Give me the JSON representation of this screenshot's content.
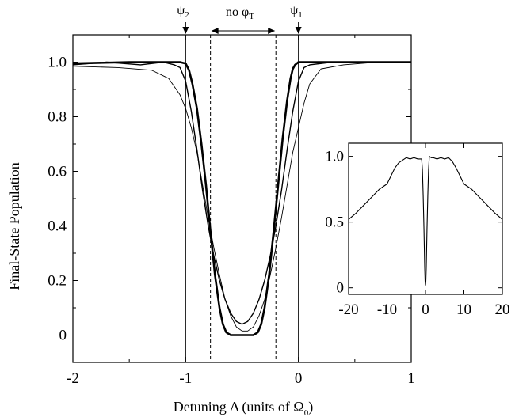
{
  "chart_data": [
    {
      "type": "line",
      "xlabel": "Detuning Δ (units of Ω",
      "xlabel_sub": "0",
      "xlabel_end": ")",
      "ylabel": "Final-State Population",
      "xlim": [
        -2,
        1
      ],
      "ylim": [
        -0.1,
        1.1
      ],
      "xticks": [
        -2,
        -1,
        0,
        1
      ],
      "xtick_labels": [
        "-2",
        "-1",
        "0",
        "1"
      ],
      "yticks": [
        0,
        0.2,
        0.4,
        0.6,
        0.8,
        1.0
      ],
      "ytick_labels": [
        "0",
        "0.2",
        "0.4",
        "0.6",
        "0.8",
        "1.0"
      ],
      "vlines_solid": [
        -1.0,
        0.0
      ],
      "vlines_dashed": [
        -0.78,
        -0.2
      ],
      "annotations": {
        "psi2": {
          "main": "ψ",
          "sub": "2",
          "x": -1.0
        },
        "psi1": {
          "main": "ψ",
          "sub": "1",
          "x": 0.0
        },
        "no_phi": {
          "main": "no φ",
          "sub": "T"
        }
      },
      "series": [
        {
          "style": "thick",
          "x": [
            -2,
            -1.5,
            -1.2,
            -1.05,
            -1.0,
            -0.97,
            -0.94,
            -0.9,
            -0.86,
            -0.82,
            -0.78,
            -0.74,
            -0.7,
            -0.67,
            -0.64,
            -0.6,
            -0.5,
            -0.4,
            -0.36,
            -0.33,
            -0.3,
            -0.26,
            -0.22,
            -0.18,
            -0.14,
            -0.1,
            -0.07,
            -0.05,
            -0.03,
            0.0,
            0.1,
            0.5,
            1.0
          ],
          "y": [
            0.995,
            1.0,
            1.0,
            1.0,
            0.995,
            0.97,
            0.92,
            0.83,
            0.7,
            0.55,
            0.38,
            0.22,
            0.1,
            0.04,
            0.01,
            0.0,
            0.0,
            0.0,
            0.01,
            0.04,
            0.1,
            0.22,
            0.38,
            0.55,
            0.72,
            0.86,
            0.94,
            0.975,
            0.99,
            1.0,
            1.0,
            1.0,
            1.0
          ]
        },
        {
          "style": "medium",
          "x": [
            -2,
            -1.7,
            -1.4,
            -1.2,
            -1.1,
            -1.05,
            -1.0,
            -0.95,
            -0.9,
            -0.85,
            -0.8,
            -0.75,
            -0.7,
            -0.65,
            -0.6,
            -0.55,
            -0.5,
            -0.45,
            -0.4,
            -0.35,
            -0.3,
            -0.25,
            -0.2,
            -0.15,
            -0.1,
            -0.05,
            0.0,
            0.05,
            0.1,
            0.3,
            0.6,
            1.0
          ],
          "y": [
            0.99,
            1.0,
            0.99,
            1.0,
            0.99,
            0.98,
            0.93,
            0.82,
            0.68,
            0.53,
            0.4,
            0.29,
            0.2,
            0.13,
            0.08,
            0.05,
            0.04,
            0.05,
            0.08,
            0.13,
            0.2,
            0.29,
            0.4,
            0.53,
            0.68,
            0.82,
            0.93,
            0.98,
            0.99,
            1.0,
            1.0,
            1.0
          ]
        },
        {
          "style": "thin",
          "x": [
            -2,
            -1.6,
            -1.3,
            -1.15,
            -1.05,
            -1.0,
            -0.95,
            -0.9,
            -0.85,
            -0.8,
            -0.75,
            -0.7,
            -0.65,
            -0.6,
            -0.55,
            -0.5,
            -0.45,
            -0.4,
            -0.35,
            -0.3,
            -0.25,
            -0.2,
            -0.15,
            -0.1,
            -0.05,
            0.0,
            0.05,
            0.1,
            0.2,
            0.4,
            0.7,
            1.0
          ],
          "y": [
            0.985,
            0.98,
            0.97,
            0.94,
            0.88,
            0.83,
            0.76,
            0.67,
            0.55,
            0.43,
            0.32,
            0.22,
            0.13,
            0.07,
            0.03,
            0.015,
            0.015,
            0.03,
            0.07,
            0.13,
            0.22,
            0.32,
            0.43,
            0.55,
            0.67,
            0.76,
            0.85,
            0.92,
            0.975,
            0.99,
            1.0,
            1.0
          ]
        }
      ]
    },
    {
      "type": "line",
      "title": "",
      "xlim": [
        -20,
        20
      ],
      "ylim": [
        -0.05,
        1.1
      ],
      "xticks": [
        -20,
        -10,
        0,
        10,
        20
      ],
      "xtick_labels": [
        "-20",
        "-10",
        "0",
        "10",
        "20"
      ],
      "yticks": [
        0,
        0.5,
        1.0
      ],
      "ytick_labels": [
        "0",
        "0.5",
        "1.0"
      ],
      "series": [
        {
          "style": "thin",
          "x": [
            -20,
            -18,
            -16,
            -14,
            -12,
            -10,
            -9,
            -8,
            -7,
            -6,
            -5,
            -4,
            -3,
            -2,
            -1.5,
            -1,
            -0.8,
            -0.6,
            -0.4,
            -0.3,
            -0.2,
            -0.1,
            0.0,
            0.1,
            0.2,
            0.3,
            0.4,
            0.6,
            0.8,
            1,
            1.5,
            2,
            3,
            4,
            5,
            6,
            7,
            8,
            9,
            10,
            12,
            14,
            16,
            18,
            20
          ],
          "y": [
            0.52,
            0.57,
            0.63,
            0.69,
            0.75,
            0.79,
            0.85,
            0.91,
            0.95,
            0.97,
            0.99,
            0.98,
            0.99,
            0.98,
            0.98,
            0.98,
            0.9,
            0.7,
            0.45,
            0.3,
            0.15,
            0.05,
            0.02,
            0.05,
            0.15,
            0.3,
            0.45,
            0.7,
            0.9,
            1.0,
            0.99,
            0.99,
            0.98,
            0.99,
            0.98,
            0.99,
            0.96,
            0.91,
            0.85,
            0.79,
            0.75,
            0.69,
            0.63,
            0.57,
            0.52
          ]
        }
      ]
    }
  ]
}
